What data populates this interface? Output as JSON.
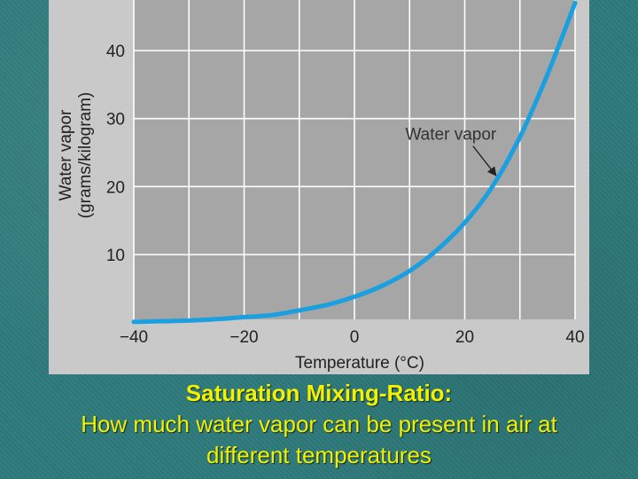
{
  "chart_data": {
    "type": "line",
    "xlabel": "Temperature (°C)",
    "ylabel": [
      "Water vapor",
      "(grams/kilogram)"
    ],
    "xlim": [
      -40,
      40
    ],
    "ylim": [
      0,
      47
    ],
    "x_ticks": [
      -40,
      -20,
      0,
      20,
      40
    ],
    "x_tick_labels": [
      "−40",
      "−20",
      "0",
      "20",
      "40"
    ],
    "y_ticks": [
      10,
      20,
      30,
      40
    ],
    "y_tick_labels": [
      "10",
      "20",
      "30",
      "40"
    ],
    "grid": true,
    "series": [
      {
        "name": "Water vapor",
        "color": "#1a9fe0",
        "x": [
          -40,
          -35,
          -30,
          -25,
          -20,
          -15,
          -10,
          -5,
          0,
          5,
          10,
          15,
          20,
          25,
          30,
          35,
          40
        ],
        "y": [
          0.1,
          0.2,
          0.3,
          0.5,
          0.8,
          1.1,
          1.8,
          2.6,
          3.8,
          5.4,
          7.6,
          10.7,
          14.7,
          20.0,
          27.3,
          36.5,
          47.0
        ]
      }
    ],
    "annotation": {
      "text": "Water vapor",
      "x": 26,
      "y": 21
    }
  },
  "caption": {
    "title": "Saturation Mixing-Ratio:",
    "line2": "How much water vapor can be present in air at",
    "line3": "different temperatures"
  },
  "colors": {
    "background": "#2e7a7b",
    "caption": "#f2f200",
    "plot_bg": "#c9c9c9",
    "curve": "#1a9fe0"
  }
}
